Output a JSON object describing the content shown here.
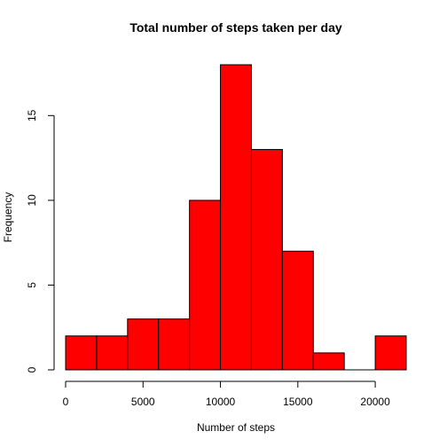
{
  "chart_data": {
    "type": "bar",
    "title": "Total number of steps taken per day",
    "xlabel": "Number of steps",
    "ylabel": "Frequency",
    "bins": [
      {
        "from": 0,
        "to": 2000,
        "count": 2
      },
      {
        "from": 2000,
        "to": 4000,
        "count": 2
      },
      {
        "from": 4000,
        "to": 6000,
        "count": 3
      },
      {
        "from": 6000,
        "to": 8000,
        "count": 3
      },
      {
        "from": 8000,
        "to": 10000,
        "count": 10
      },
      {
        "from": 10000,
        "to": 12000,
        "count": 18
      },
      {
        "from": 12000,
        "to": 14000,
        "count": 13
      },
      {
        "from": 14000,
        "to": 16000,
        "count": 7
      },
      {
        "from": 16000,
        "to": 18000,
        "count": 1
      },
      {
        "from": 18000,
        "to": 20000,
        "count": 0
      },
      {
        "from": 20000,
        "to": 22000,
        "count": 2
      }
    ],
    "xlim": [
      0,
      22000
    ],
    "ylim": [
      0,
      18
    ],
    "xticks": [
      0,
      5000,
      10000,
      15000,
      20000
    ],
    "yticks": [
      0,
      5,
      10,
      15
    ],
    "bar_color": "#ff0000",
    "edge_color": "#000000",
    "grid": false,
    "legend": "none"
  }
}
